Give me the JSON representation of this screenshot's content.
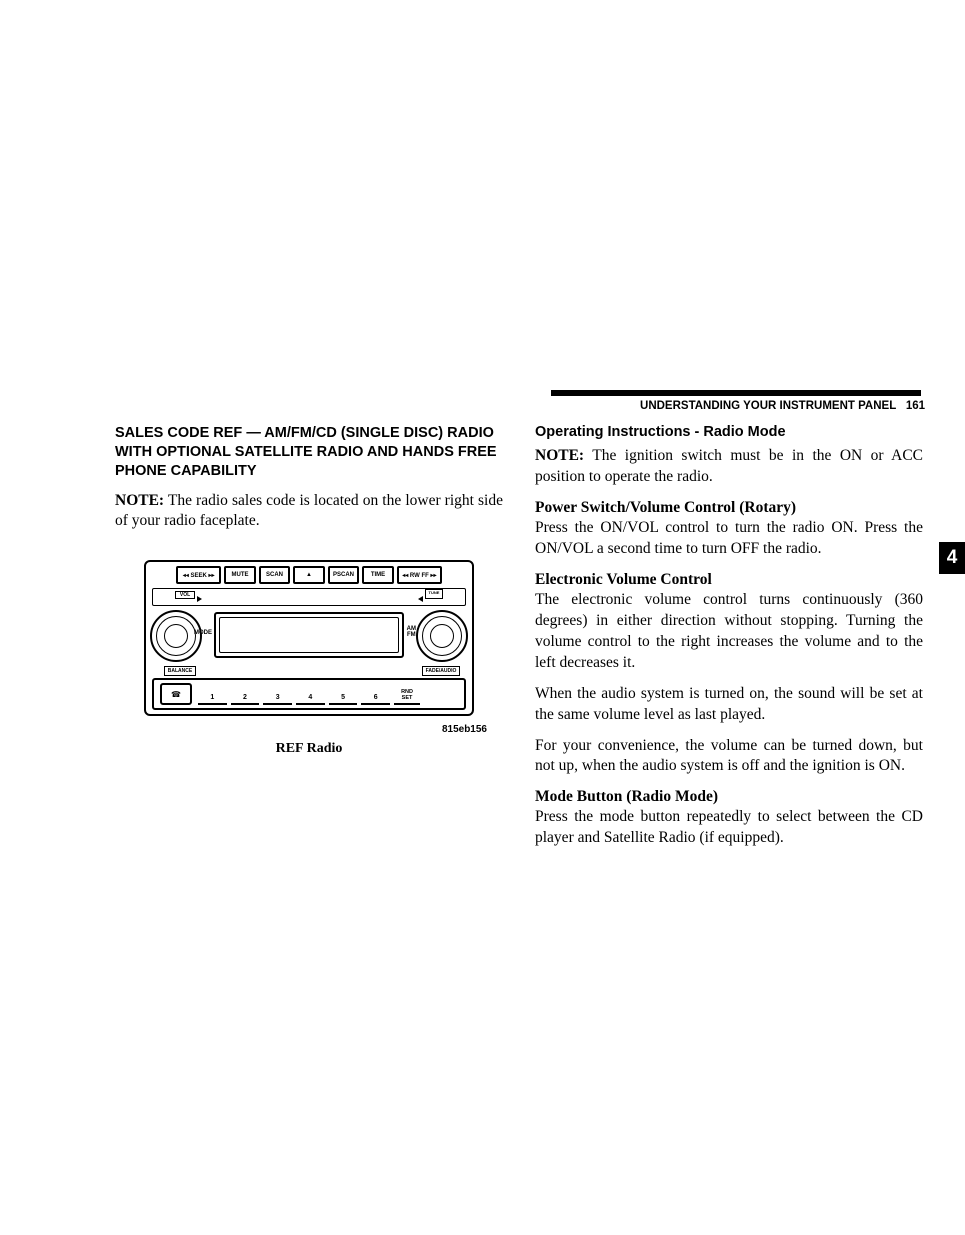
{
  "header": {
    "section": "UNDERSTANDING YOUR INSTRUMENT PANEL",
    "page": "161"
  },
  "side_tab": "4",
  "left": {
    "heading": "SALES CODE REF — AM/FM/CD (SINGLE DISC) RADIO WITH OPTIONAL SATELLITE RADIO AND HANDS FREE PHONE CAPABILITY",
    "note_label": "NOTE:",
    "note_body": "  The radio sales code is located on the lower right side of your radio faceplate.",
    "figure": {
      "top_buttons": [
        "◂◂ SEEK ▸▸",
        "MUTE",
        "SCAN",
        "▲",
        "PSCAN",
        "TIME",
        "◂◂ RW FF ▸▸"
      ],
      "strip_left": "VOL",
      "strip_right": "TUNE",
      "mode": "MODE",
      "amfm": "AM\nFM",
      "small_l": "BALANCE",
      "small_r": "FADE/AUDIO",
      "presets": [
        "1",
        "2",
        "3",
        "4",
        "5",
        "6"
      ],
      "rnd": "RND\nSET",
      "id": "815eb156",
      "caption": "REF Radio"
    }
  },
  "right": {
    "h2": "Operating Instructions - Radio Mode",
    "note_label": "NOTE:",
    "note_body": "  The ignition switch must be in the ON or ACC position to operate the radio.",
    "sec1_h": "Power Switch/Volume Control (Rotary)",
    "sec1_p": "Press the ON/VOL control to turn the radio ON. Press the ON/VOL a second time to turn OFF the radio.",
    "sec2_h": "Electronic Volume Control",
    "sec2_p1": "The electronic volume control turns continuously (360 degrees) in either direction without stopping. Turning the volume control to the right increases the volume and to the left decreases it.",
    "sec2_p2": "When the audio system is turned on, the sound will be set at the same volume level as last played.",
    "sec2_p3": "For your convenience, the volume can be turned down, but not up, when the audio system is off and the ignition is ON.",
    "sec3_h": "Mode Button (Radio Mode)",
    "sec3_p": "Press the mode button repeatedly to select between the CD player and Satellite Radio (if equipped)."
  }
}
